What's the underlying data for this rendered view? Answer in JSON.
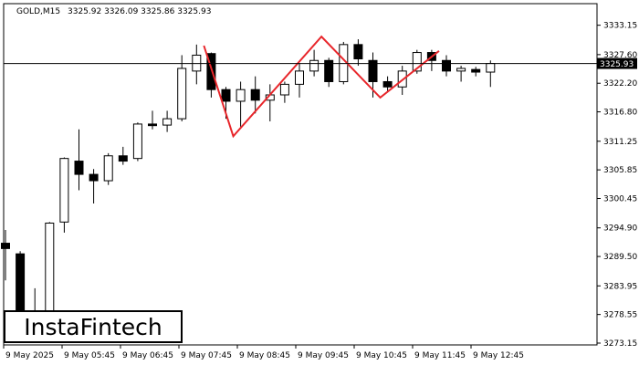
{
  "header": {
    "symbol": "GOLD,M15",
    "ohlc": "3325.92 3326.09 3325.86 3325.93"
  },
  "logo": {
    "text": "InstaFintech"
  },
  "current_price_label": "3325.93",
  "colors": {
    "bull_fill": "#ffffff",
    "bear_fill": "#000000",
    "pattern": "#e8262b",
    "axis": "#000000",
    "price_tag_bg": "#000000",
    "price_tag_fg": "#ffffff"
  },
  "chart_data": {
    "type": "candlestick",
    "title": "",
    "ylim": [
      3273.15,
      3335.5
    ],
    "y_ticks": [
      "3333.15",
      "3327.60",
      "3322.20",
      "3316.80",
      "3311.25",
      "3305.85",
      "3300.45",
      "3294.90",
      "3289.50",
      "3283.95",
      "3278.55",
      "3273.15"
    ],
    "x_ticks": [
      "9 May 2025",
      "9 May 05:45",
      "9 May 06:45",
      "9 May 07:45",
      "9 May 08:45",
      "9 May 09:45",
      "9 May 10:45",
      "9 May 11:45",
      "9 May 12:45"
    ],
    "current_price": 3325.93,
    "candles": [
      {
        "o": 3292.0,
        "h": 3294.5,
        "l": 3285.0,
        "c": 3291.0
      },
      {
        "o": 3290.0,
        "h": 3290.5,
        "l": 3276.0,
        "c": 3276.5
      },
      {
        "o": 3278.0,
        "h": 3283.5,
        "l": 3277.5,
        "c": 3278.3
      },
      {
        "o": 3278.5,
        "h": 3296.0,
        "l": 3278.0,
        "c": 3295.8
      },
      {
        "o": 3296.0,
        "h": 3308.2,
        "l": 3294.0,
        "c": 3308.0
      },
      {
        "o": 3307.5,
        "h": 3313.5,
        "l": 3302.0,
        "c": 3305.0
      },
      {
        "o": 3305.0,
        "h": 3306.0,
        "l": 3299.5,
        "c": 3303.8
      },
      {
        "o": 3303.8,
        "h": 3309.0,
        "l": 3303.0,
        "c": 3308.5
      },
      {
        "o": 3308.5,
        "h": 3310.2,
        "l": 3306.8,
        "c": 3307.5
      },
      {
        "o": 3308.0,
        "h": 3314.8,
        "l": 3307.5,
        "c": 3314.5
      },
      {
        "o": 3314.5,
        "h": 3317.0,
        "l": 3313.5,
        "c": 3314.2
      },
      {
        "o": 3314.3,
        "h": 3317.0,
        "l": 3313.0,
        "c": 3315.5
      },
      {
        "o": 3315.5,
        "h": 3327.5,
        "l": 3315.0,
        "c": 3325.0
      },
      {
        "o": 3324.5,
        "h": 3329.5,
        "l": 3322.0,
        "c": 3327.5
      },
      {
        "o": 3327.8,
        "h": 3328.0,
        "l": 3319.5,
        "c": 3321.0
      },
      {
        "o": 3321.0,
        "h": 3321.5,
        "l": 3315.5,
        "c": 3318.8
      },
      {
        "o": 3318.8,
        "h": 3322.5,
        "l": 3314.0,
        "c": 3321.0
      },
      {
        "o": 3321.0,
        "h": 3323.5,
        "l": 3316.5,
        "c": 3319.0
      },
      {
        "o": 3319.0,
        "h": 3322.0,
        "l": 3315.0,
        "c": 3320.0
      },
      {
        "o": 3320.0,
        "h": 3322.5,
        "l": 3318.5,
        "c": 3322.0
      },
      {
        "o": 3322.0,
        "h": 3326.0,
        "l": 3319.5,
        "c": 3324.5
      },
      {
        "o": 3324.5,
        "h": 3328.5,
        "l": 3323.5,
        "c": 3326.5
      },
      {
        "o": 3326.5,
        "h": 3327.0,
        "l": 3321.5,
        "c": 3322.5
      },
      {
        "o": 3322.5,
        "h": 3330.0,
        "l": 3322.0,
        "c": 3329.5
      },
      {
        "o": 3329.5,
        "h": 3330.5,
        "l": 3325.5,
        "c": 3326.8
      },
      {
        "o": 3326.5,
        "h": 3328.0,
        "l": 3319.5,
        "c": 3322.5
      },
      {
        "o": 3322.5,
        "h": 3323.5,
        "l": 3320.5,
        "c": 3321.5
      },
      {
        "o": 3321.5,
        "h": 3325.5,
        "l": 3320.0,
        "c": 3324.5
      },
      {
        "o": 3324.5,
        "h": 3328.5,
        "l": 3324.0,
        "c": 3328.0
      },
      {
        "o": 3328.0,
        "h": 3328.5,
        "l": 3324.5,
        "c": 3326.5
      },
      {
        "o": 3326.5,
        "h": 3327.5,
        "l": 3323.5,
        "c": 3324.5
      },
      {
        "o": 3324.5,
        "h": 3325.5,
        "l": 3322.5,
        "c": 3325.0
      },
      {
        "o": 3324.8,
        "h": 3325.3,
        "l": 3323.5,
        "c": 3324.3
      },
      {
        "o": 3324.3,
        "h": 3326.5,
        "l": 3321.5,
        "c": 3325.93
      }
    ],
    "pattern": {
      "name": "triple top",
      "points": [
        {
          "i": 13.5,
          "price": 3329.3
        },
        {
          "i": 15.5,
          "price": 3312.2
        },
        {
          "i": 21.5,
          "price": 3331.0
        },
        {
          "i": 25.5,
          "price": 3319.5
        },
        {
          "i": 29.5,
          "price": 3328.3
        }
      ]
    }
  }
}
